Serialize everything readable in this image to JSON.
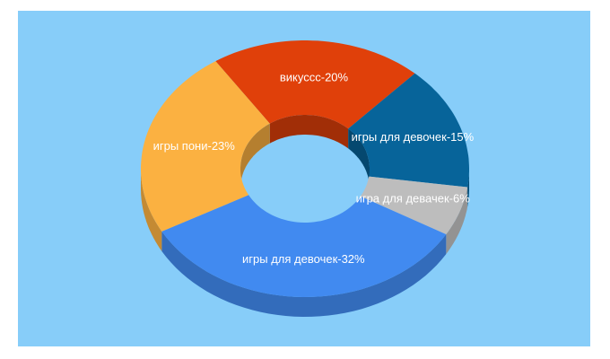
{
  "chart_data": {
    "type": "donut3d",
    "categories": [
      "викуссс-20%",
      "игры для девочек-15%",
      "игра для девачек-6%",
      "игры для девочек-32%",
      "игры пони-23%"
    ],
    "values": [
      20,
      15,
      6,
      32,
      23
    ],
    "colors": [
      "#e0400a",
      "#07649a",
      "#bdbdbd",
      "#418af0",
      "#fbb141"
    ]
  }
}
